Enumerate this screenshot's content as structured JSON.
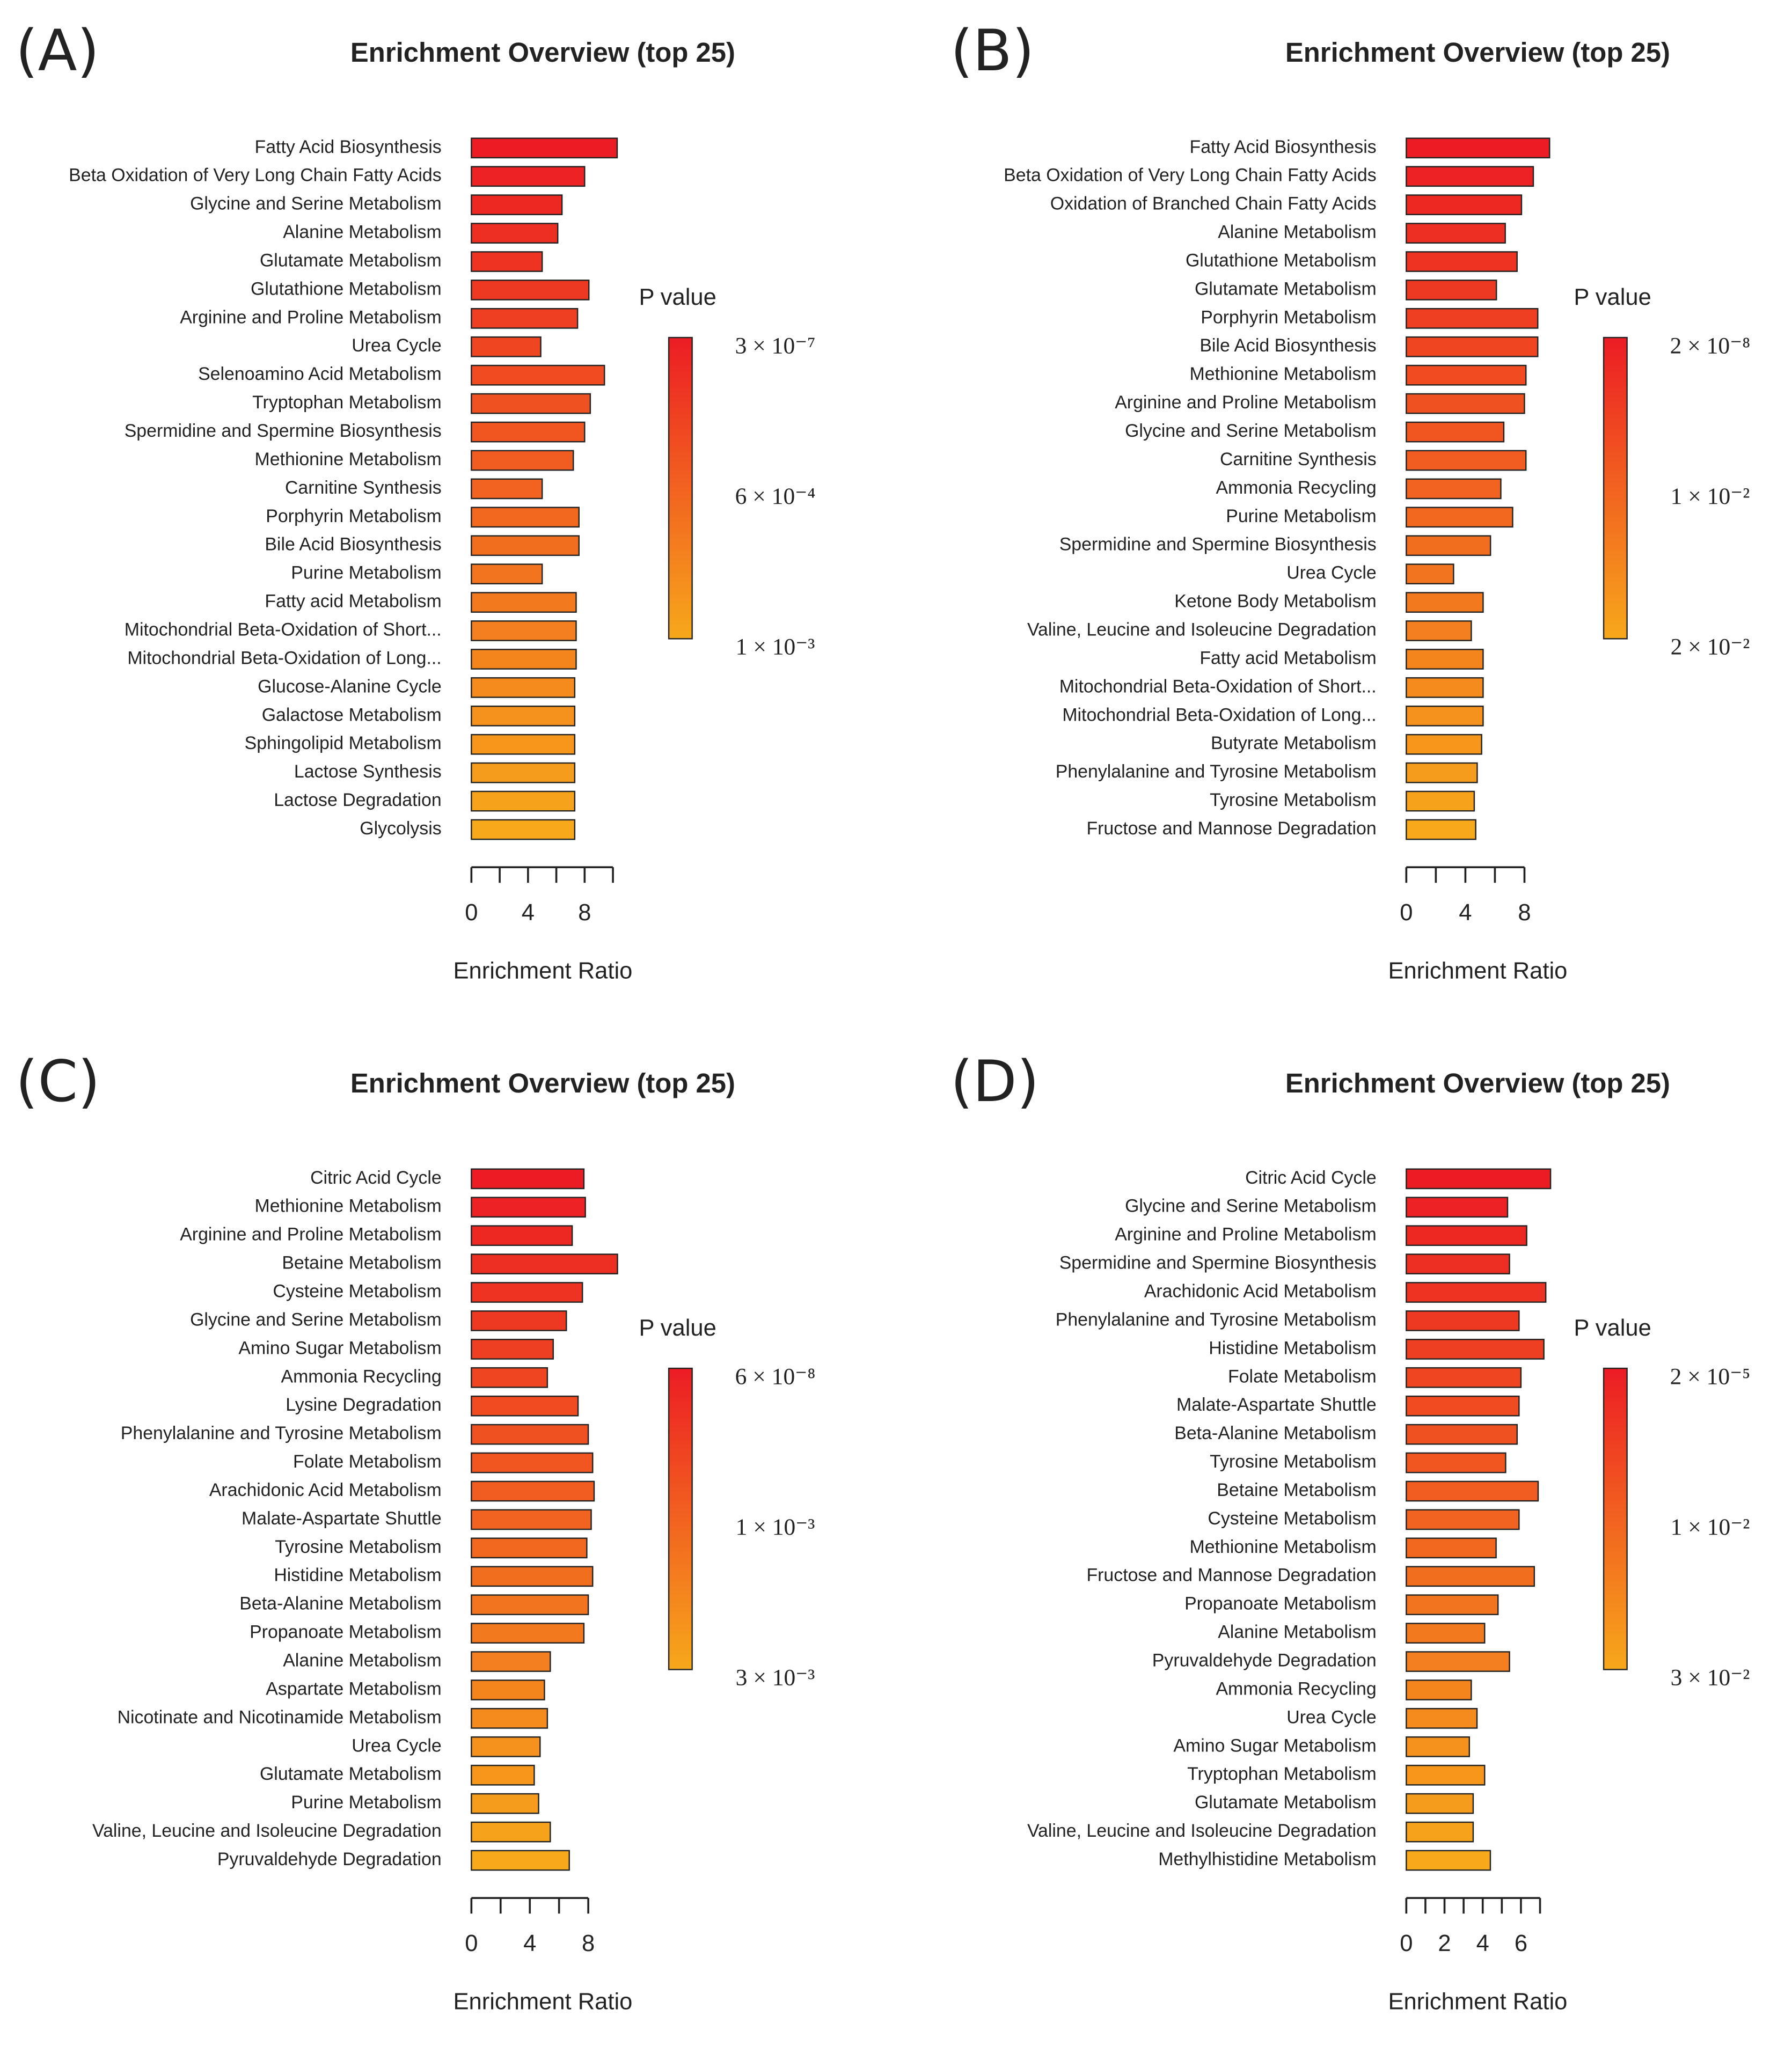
{
  "chart_data": [
    {
      "type": "bar",
      "orientation": "horizontal",
      "panel_label": "(A)",
      "title": "Enrichment Overview (top 25)",
      "xlabel": "Enrichment Ratio",
      "categories": [
        "Fatty Acid Biosynthesis",
        "Beta Oxidation of Very Long Chain Fatty Acids",
        "Glycine and Serine Metabolism",
        "Alanine Metabolism",
        "Glutamate Metabolism",
        "Glutathione Metabolism",
        "Arginine and Proline Metabolism",
        "Urea Cycle",
        "Selenoamino Acid Metabolism",
        "Tryptophan Metabolism",
        "Spermidine and Spermine Biosynthesis",
        "Methionine Metabolism",
        "Carnitine Synthesis",
        "Porphyrin Metabolism",
        "Bile Acid Biosynthesis",
        "Purine Metabolism",
        "Fatty acid Metabolism",
        "Mitochondrial Beta-Oxidation of Short...",
        "Mitochondrial Beta-Oxidation of Long...",
        "Glucose-Alanine Cycle",
        "Galactose Metabolism",
        "Sphingolipid Metabolism",
        "Lactose Synthesis",
        "Lactose Degradation",
        "Glycolysis"
      ],
      "values": [
        10.3,
        8.0,
        6.4,
        6.1,
        5.0,
        8.3,
        7.5,
        4.9,
        9.4,
        8.4,
        8.0,
        7.2,
        5.0,
        7.6,
        7.6,
        5.0,
        7.4,
        7.4,
        7.4,
        7.3,
        7.3,
        7.3,
        7.3,
        7.3,
        7.3
      ],
      "xlim": [
        0,
        10
      ],
      "xticks": [
        0,
        4,
        8
      ],
      "xticks_minor": [
        2,
        6,
        10
      ],
      "colorbar": {
        "title": "P value",
        "colors": [
          "#ec1c24",
          "#f7a81b"
        ],
        "ticks": [
          {
            "value": 3e-07,
            "label": "3 × 10⁻⁷"
          },
          {
            "value": 0.0006,
            "label": "6 × 10⁻⁴"
          },
          {
            "value": 0.001,
            "label": "1 × 10⁻³"
          }
        ]
      }
    },
    {
      "type": "bar",
      "orientation": "horizontal",
      "panel_label": "(B)",
      "title": "Enrichment Overview (top 25)",
      "xlabel": "Enrichment Ratio",
      "categories": [
        "Fatty Acid Biosynthesis",
        "Beta Oxidation of Very Long Chain Fatty Acids",
        "Oxidation of Branched Chain Fatty Acids",
        "Alanine Metabolism",
        "Glutathione Metabolism",
        "Glutamate Metabolism",
        "Porphyrin Metabolism",
        "Bile Acid Biosynthesis",
        "Methionine Metabolism",
        "Arginine and Proline Metabolism",
        "Glycine and Serine Metabolism",
        "Carnitine Synthesis",
        "Ammonia Recycling",
        "Purine Metabolism",
        "Spermidine and Spermine Biosynthesis",
        "Urea Cycle",
        "Ketone Body Metabolism",
        "Valine, Leucine and Isoleucine Degradation",
        "Fatty acid Metabolism",
        "Mitochondrial Beta-Oxidation of Short...",
        "Mitochondrial Beta-Oxidation of Long...",
        "Butyrate Metabolism",
        "Phenylalanine and Tyrosine Metabolism",
        "Tyrosine Metabolism",
        "Fructose and Mannose Degradation"
      ],
      "values": [
        9.7,
        8.6,
        7.8,
        6.7,
        7.5,
        6.1,
        8.9,
        8.9,
        8.1,
        8.0,
        6.6,
        8.1,
        6.4,
        7.2,
        5.7,
        3.2,
        5.2,
        4.4,
        5.2,
        5.2,
        5.2,
        5.1,
        4.8,
        4.6,
        4.7
      ],
      "xlim": [
        0,
        8
      ],
      "xticks": [
        0,
        4,
        8
      ],
      "xticks_minor": [
        2,
        6
      ],
      "colorbar": {
        "title": "P value",
        "colors": [
          "#ec1c24",
          "#f7a81b"
        ],
        "ticks": [
          {
            "value": 2e-08,
            "label": "2 × 10⁻⁸"
          },
          {
            "value": 0.01,
            "label": "1 × 10⁻²"
          },
          {
            "value": 0.02,
            "label": "2 × 10⁻²"
          }
        ]
      }
    },
    {
      "type": "bar",
      "orientation": "horizontal",
      "panel_label": "(C)",
      "title": "Enrichment Overview (top 25)",
      "xlabel": "Enrichment Ratio",
      "categories": [
        "Citric Acid Cycle",
        "Methionine Metabolism",
        "Arginine and Proline Metabolism",
        "Betaine Metabolism",
        "Cysteine Metabolism",
        "Glycine and Serine Metabolism",
        "Amino Sugar Metabolism",
        "Ammonia Recycling",
        "Lysine Degradation",
        "Phenylalanine and Tyrosine Metabolism",
        "Folate Metabolism",
        "Arachidonic Acid Metabolism",
        "Malate-Aspartate Shuttle",
        "Tyrosine Metabolism",
        "Histidine Metabolism",
        "Beta-Alanine Metabolism",
        "Propanoate Metabolism",
        "Alanine Metabolism",
        "Aspartate Metabolism",
        "Nicotinate and Nicotinamide Metabolism",
        "Urea Cycle",
        "Glutamate Metabolism",
        "Purine Metabolism",
        "Valine, Leucine and Isoleucine Degradation",
        "Pyruvaldehyde Degradation"
      ],
      "values": [
        7.7,
        7.8,
        6.9,
        10.0,
        7.6,
        6.5,
        5.6,
        5.2,
        7.3,
        8.0,
        8.3,
        8.4,
        8.2,
        7.9,
        8.3,
        8.0,
        7.7,
        5.4,
        5.0,
        5.2,
        4.7,
        4.3,
        4.6,
        5.4,
        6.7
      ],
      "xlim": [
        0,
        8
      ],
      "xticks": [
        0,
        4,
        8
      ],
      "xticks_minor": [
        2,
        6
      ],
      "colorbar": {
        "title": "P value",
        "colors": [
          "#ec1c24",
          "#f7a81b"
        ],
        "ticks": [
          {
            "value": 6e-08,
            "label": "6 × 10⁻⁸"
          },
          {
            "value": 0.001,
            "label": "1 × 10⁻³"
          },
          {
            "value": 0.003,
            "label": "3 × 10⁻³"
          }
        ]
      }
    },
    {
      "type": "bar",
      "orientation": "horizontal",
      "panel_label": "(D)",
      "title": "Enrichment Overview (top 25)",
      "xlabel": "Enrichment Ratio",
      "categories": [
        "Citric Acid Cycle",
        "Glycine and Serine Metabolism",
        "Arginine and Proline Metabolism",
        "Spermidine and Spermine Biosynthesis",
        "Arachidonic Acid Metabolism",
        "Phenylalanine and Tyrosine Metabolism",
        "Histidine Metabolism",
        "Folate Metabolism",
        "Malate-Aspartate Shuttle",
        "Beta-Alanine Metabolism",
        "Tyrosine Metabolism",
        "Betaine Metabolism",
        "Cysteine Metabolism",
        "Methionine Metabolism",
        "Fructose and Mannose Degradation",
        "Propanoate Metabolism",
        "Alanine Metabolism",
        "Pyruvaldehyde Degradation",
        "Ammonia Recycling",
        "Urea Cycle",
        "Amino Sugar Metabolism",
        "Tryptophan Metabolism",
        "Glutamate Metabolism",
        "Valine, Leucine and Isoleucine Degradation",
        "Methylhistidine Metabolism"
      ],
      "values": [
        7.55,
        5.3,
        6.3,
        5.4,
        7.3,
        5.9,
        7.2,
        6.0,
        5.9,
        5.8,
        5.2,
        6.9,
        5.9,
        4.7,
        6.7,
        4.8,
        4.1,
        5.4,
        3.4,
        3.7,
        3.3,
        4.1,
        3.5,
        3.5,
        4.4
      ],
      "xlim": [
        0,
        7
      ],
      "xticks": [
        0,
        2,
        4,
        6
      ],
      "xticks_minor": [
        1,
        3,
        5,
        7
      ],
      "colorbar": {
        "title": "P value",
        "colors": [
          "#ec1c24",
          "#f7a81b"
        ],
        "ticks": [
          {
            "value": 2e-05,
            "label": "2 × 10⁻⁵"
          },
          {
            "value": 0.01,
            "label": "1 × 10⁻²"
          },
          {
            "value": 0.03,
            "label": "3 × 10⁻²"
          }
        ]
      }
    }
  ]
}
